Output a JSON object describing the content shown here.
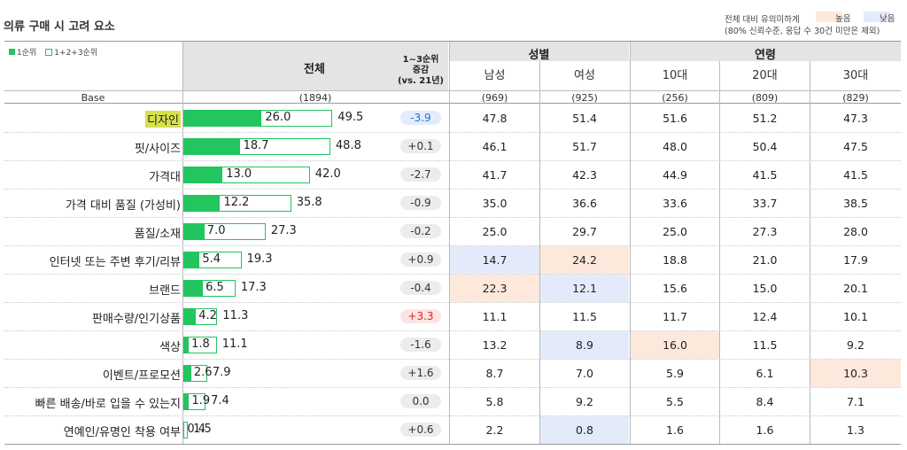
{
  "title": "의류 구매 시 고려 요소",
  "significance": {
    "title": "전체 대비 유의미하게",
    "note": "(80% 신뢰수준, 응답 수 30건 미만은 제외)",
    "high_label": "높음",
    "low_label": "낮음",
    "high_color": "#fde9dc",
    "low_color": "#e3ebfb"
  },
  "legend": {
    "rank1": "1순위",
    "rank123": "1+2+3순위",
    "color": "#22c55e"
  },
  "headers": {
    "total": "전체",
    "change_line1": "1~3순위",
    "change_line2": "증감",
    "change_line3": "(vs. 21년)",
    "gender": "성별",
    "age": "연령",
    "columns": [
      "남성",
      "여성",
      "10대",
      "20대",
      "30대"
    ]
  },
  "base": {
    "label": "Base",
    "total": "(1894)",
    "columns": [
      "(969)",
      "(925)",
      "(256)",
      "(809)",
      "(829)"
    ]
  },
  "chart_data": {
    "type": "table",
    "title": "의류 구매 시 고려 요소",
    "series_names": [
      "1순위",
      "1+2+3순위"
    ],
    "rows": [
      {
        "label": "디자인",
        "rank1": "26.0",
        "rank123": "49.5",
        "change": "-3.9",
        "change_sig": "blue",
        "values": [
          "47.8",
          "51.4",
          "51.6",
          "51.2",
          "47.3"
        ],
        "sig": [
          "",
          "",
          "",
          "",
          ""
        ]
      },
      {
        "label": "핏/사이즈",
        "rank1": "18.7",
        "rank123": "48.8",
        "change": "+0.1",
        "change_sig": "",
        "values": [
          "46.1",
          "51.7",
          "48.0",
          "50.4",
          "47.5"
        ],
        "sig": [
          "",
          "",
          "",
          "",
          ""
        ]
      },
      {
        "label": "가격대",
        "rank1": "13.0",
        "rank123": "42.0",
        "change": "-2.7",
        "change_sig": "",
        "values": [
          "41.7",
          "42.3",
          "44.9",
          "41.5",
          "41.5"
        ],
        "sig": [
          "",
          "",
          "",
          "",
          ""
        ]
      },
      {
        "label": "가격 대비 품질 (가성비)",
        "rank1": "12.2",
        "rank123": "35.8",
        "change": "-0.9",
        "change_sig": "",
        "values": [
          "35.0",
          "36.6",
          "33.6",
          "33.7",
          "38.5"
        ],
        "sig": [
          "",
          "",
          "",
          "",
          ""
        ]
      },
      {
        "label": "품질/소재",
        "rank1": "7.0",
        "rank123": "27.3",
        "change": "-0.2",
        "change_sig": "",
        "values": [
          "25.0",
          "29.7",
          "25.0",
          "27.3",
          "28.0"
        ],
        "sig": [
          "",
          "",
          "",
          "",
          ""
        ]
      },
      {
        "label": "인터넷 또는 주변 후기/리뷰",
        "rank1": "5.4",
        "rank123": "19.3",
        "change": "+0.9",
        "change_sig": "",
        "values": [
          "14.7",
          "24.2",
          "18.8",
          "21.0",
          "17.9"
        ],
        "sig": [
          "lo",
          "hi",
          "",
          "",
          ""
        ]
      },
      {
        "label": "브랜드",
        "rank1": "6.5",
        "rank123": "17.3",
        "change": "-0.4",
        "change_sig": "",
        "values": [
          "22.3",
          "12.1",
          "15.6",
          "15.0",
          "20.1"
        ],
        "sig": [
          "hi",
          "lo",
          "",
          "",
          ""
        ]
      },
      {
        "label": "판매수량/인기상품",
        "rank1": "4.2",
        "rank123": "11.3",
        "change": "+3.3",
        "change_sig": "red",
        "values": [
          "11.1",
          "11.5",
          "11.7",
          "12.4",
          "10.1"
        ],
        "sig": [
          "",
          "",
          "",
          "",
          ""
        ]
      },
      {
        "label": "색상",
        "rank1": "1.8",
        "rank123": "11.1",
        "change": "-1.6",
        "change_sig": "",
        "values": [
          "13.2",
          "8.9",
          "16.0",
          "11.5",
          "9.2"
        ],
        "sig": [
          "",
          "lo",
          "hi",
          "",
          ""
        ]
      },
      {
        "label": "이벤트/프로모션",
        "rank1": "2.6",
        "rank123": "7.9",
        "change": "+1.6",
        "change_sig": "",
        "values": [
          "8.7",
          "7.0",
          "5.9",
          "6.1",
          "10.3"
        ],
        "sig": [
          "",
          "",
          "",
          "",
          "hi"
        ]
      },
      {
        "label": "빠른 배송/바로 입을 수 있는지",
        "rank1": "1.9",
        "rank123": "7.4",
        "change": "0.0",
        "change_sig": "",
        "values": [
          "5.8",
          "9.2",
          "5.5",
          "8.4",
          "7.1"
        ],
        "sig": [
          "",
          "",
          "",
          "",
          ""
        ]
      },
      {
        "label": "연예인/유명인 착용 여부",
        "rank1": "0.4",
        "rank123": "1.5",
        "change": "+0.6",
        "change_sig": "",
        "values": [
          "2.2",
          "0.8",
          "1.6",
          "1.6",
          "1.3"
        ],
        "sig": [
          "",
          "lo",
          "",
          "",
          ""
        ]
      }
    ]
  }
}
